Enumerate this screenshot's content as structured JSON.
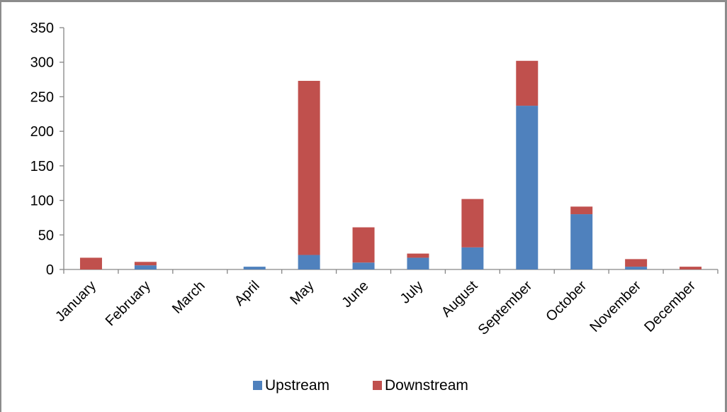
{
  "chart_data": {
    "type": "bar",
    "stacked": true,
    "title": "",
    "xlabel": "",
    "ylabel": "",
    "ylim": [
      0,
      350
    ],
    "yticks": [
      0,
      50,
      100,
      150,
      200,
      250,
      300,
      350
    ],
    "grid": false,
    "legend_position": "bottom",
    "categories": [
      "January",
      "February",
      "March",
      "April",
      "May",
      "June",
      "July",
      "August",
      "September",
      "October",
      "November",
      "December"
    ],
    "series": [
      {
        "name": "Upstream",
        "color": "#4f81bd",
        "values": [
          0,
          6,
          0,
          4,
          21,
          10,
          17,
          32,
          237,
          80,
          4,
          0
        ]
      },
      {
        "name": "Downstream",
        "color": "#c0504d",
        "values": [
          17,
          5,
          0,
          0,
          252,
          51,
          6,
          70,
          65,
          11,
          11,
          4
        ]
      }
    ]
  }
}
